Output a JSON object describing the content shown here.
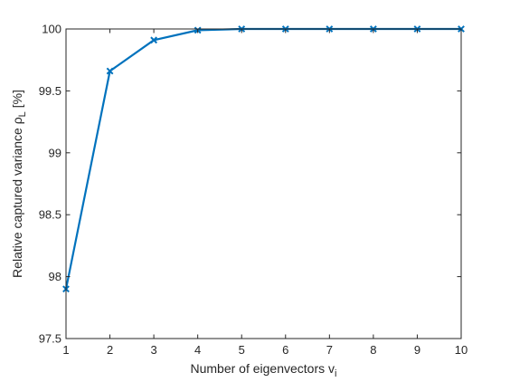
{
  "chart_data": {
    "type": "line",
    "x": [
      1,
      2,
      3,
      4,
      5,
      6,
      7,
      8,
      9,
      10
    ],
    "series": [
      {
        "values": [
          97.9,
          99.66,
          99.91,
          99.99,
          100.0,
          100.0,
          100.0,
          100.0,
          100.0,
          100.0
        ],
        "color": "#0072BD",
        "marker": "x"
      }
    ],
    "xlabel": {
      "main": "Number of eigenvectors v",
      "sub": "i"
    },
    "ylabel": {
      "main": "Relative captured variance ρ",
      "sub": "L",
      "unit": " [%]"
    },
    "xlim": [
      1,
      10
    ],
    "ylim": [
      97.5,
      100
    ],
    "xticks": [
      "1",
      "2",
      "3",
      "4",
      "5",
      "6",
      "7",
      "8",
      "9",
      "10"
    ],
    "yticks": [
      "97.5",
      "98",
      "98.5",
      "99",
      "99.5",
      "100"
    ],
    "grid": false,
    "box": true
  }
}
